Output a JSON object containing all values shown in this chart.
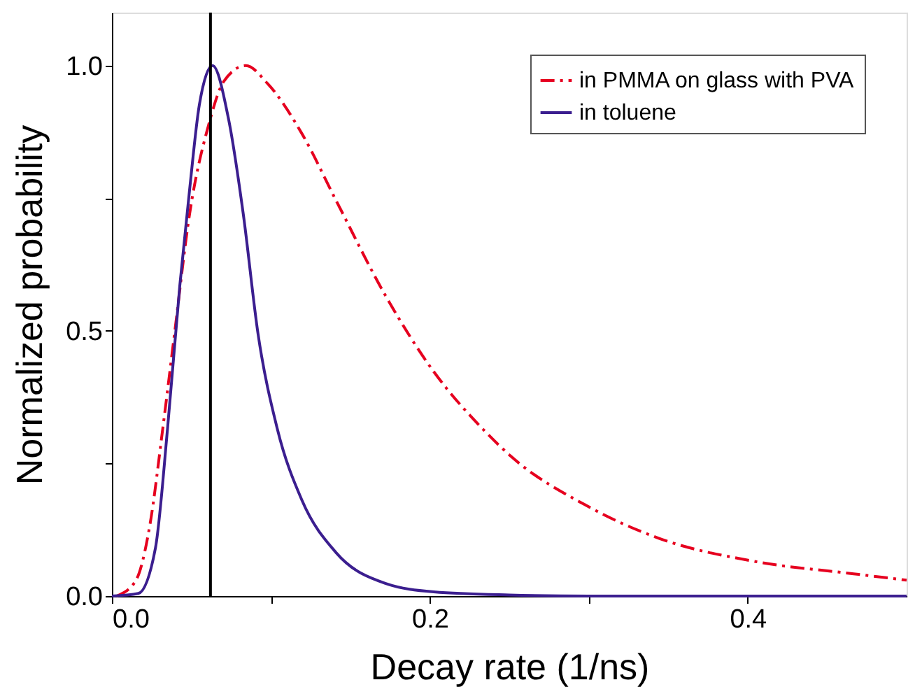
{
  "chart_data": {
    "type": "line",
    "xlabel": "Decay rate (1/ns)",
    "ylabel": "Normalized probability",
    "xlim": [
      0,
      0.5
    ],
    "ylim": [
      0,
      1.1
    ],
    "xticks": [
      {
        "value": 0,
        "label": "0.0"
      },
      {
        "value": 0.1,
        "label": null
      },
      0.2,
      {
        "value": 0.3,
        "label": null
      },
      0.4
    ],
    "yticks": [
      {
        "value": 0,
        "label": "0.0"
      },
      {
        "value": 0.25,
        "label": null
      },
      0.5,
      {
        "value": 0.75,
        "label": null
      },
      {
        "value": 1,
        "label": "1.0"
      }
    ],
    "legend": "top right",
    "grid": false,
    "marker": "none",
    "ref_lines": [
      {
        "axis": "x",
        "value": 0.062,
        "color": "#000000",
        "line_style": "solid"
      }
    ],
    "series": [
      {
        "name": "in PMMA on glass with PVA",
        "color": "#e6001f",
        "line_style": "dashdot",
        "x": [
          0.003,
          0.015,
          0.024,
          0.032,
          0.0394,
          0.0488,
          0.061,
          0.0703,
          0.0842,
          0.098,
          0.1195,
          0.141,
          0.172,
          0.2025,
          0.233,
          0.2516,
          0.2977,
          0.344,
          0.405,
          0.4666,
          0.5
        ],
        "values": [
          0,
          0.029,
          0.136,
          0.316,
          0.495,
          0.719,
          0.89,
          0.97,
          1.0,
          0.966,
          0.872,
          0.746,
          0.567,
          0.423,
          0.316,
          0.262,
          0.172,
          0.109,
          0.065,
          0.042,
          0.03
        ]
      },
      {
        "name": "in toluene",
        "color": "#3b1e8f",
        "line_style": "solid",
        "x": [
          0.0,
          0.0166,
          0.0274,
          0.035,
          0.0427,
          0.0488,
          0.055,
          0.0633,
          0.0734,
          0.0827,
          0.0919,
          0.104,
          0.1195,
          0.141,
          0.172,
          0.2025,
          0.25,
          0.3,
          0.4,
          0.5
        ],
        "values": [
          0,
          0.005,
          0.091,
          0.316,
          0.585,
          0.764,
          0.926,
          1.0,
          0.899,
          0.719,
          0.495,
          0.316,
          0.181,
          0.082,
          0.024,
          0.008,
          0.002,
          0,
          0,
          0
        ]
      }
    ]
  }
}
